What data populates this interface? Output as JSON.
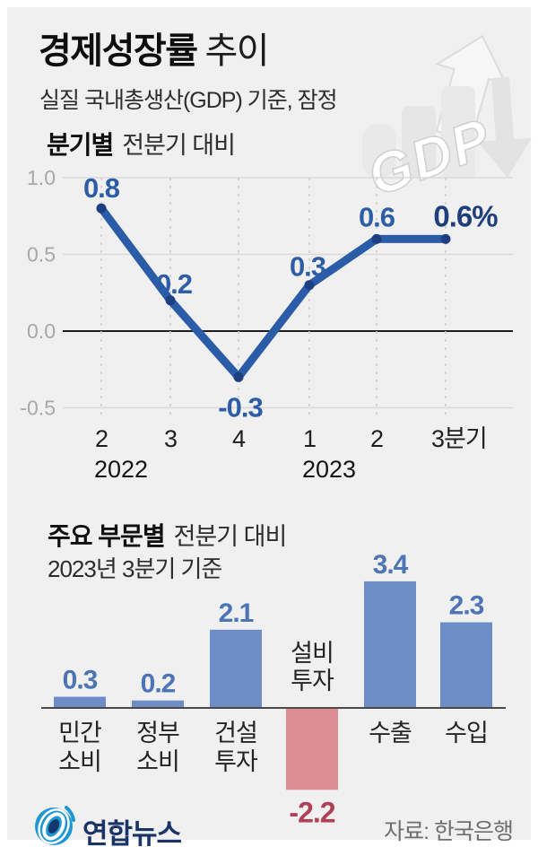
{
  "header": {
    "title_bold": "경제성장률",
    "title_light": "추이",
    "subtitle": "실질 국내총생산(GDP) 기준, 잠정"
  },
  "art": {
    "label": "GDP"
  },
  "colors": {
    "line": "#2b5ca8",
    "dot": "#1e3f7f",
    "label_blue": "#2d5da6",
    "label_final": "#1f3e7c",
    "bar_blue": "#6c8dc6",
    "bar_red": "#dd8d94",
    "bar_label_blue": "#4d74b5",
    "bar_label_red": "#b04055",
    "axis_gray": "#a8a8a8",
    "grid_gray": "#d9d9d9",
    "zero_line": "#1c1c1c",
    "logo_blue": "#1e96d2",
    "logo_navy": "#15356e",
    "panel_bg": "#f0f0f1"
  },
  "chart_data": [
    {
      "type": "line",
      "title_bold": "분기별",
      "title_light": "전분기 대비",
      "x_tick_labels": [
        "2",
        "3",
        "4",
        "1",
        "2",
        "3분기"
      ],
      "year_labels": [
        {
          "label": "2022",
          "index": 0
        },
        {
          "label": "2023",
          "index": 3
        }
      ],
      "values": [
        0.8,
        0.2,
        -0.3,
        0.3,
        0.6,
        0.6
      ],
      "point_labels": [
        "0.8",
        "0.2",
        "-0.3",
        "0.3",
        "0.6",
        "0.6%"
      ],
      "y_ticks": [
        1.0,
        0.5,
        0.0,
        -0.5
      ],
      "ylim": [
        -0.5,
        1.0
      ],
      "grid": "horizontal solid, vertical dashed",
      "legend": "none",
      "unit": "%"
    },
    {
      "type": "bar",
      "title_bold": "주요 부문별",
      "title_light": "전분기 대비",
      "subtitle": "2023년 3분기 기준",
      "categories": [
        "민간소비",
        "정부소비",
        "건설투자",
        "설비투자",
        "수출",
        "수입"
      ],
      "categories_lines": [
        [
          "민간",
          "소비"
        ],
        [
          "정부",
          "소비"
        ],
        [
          "건설",
          "투자"
        ],
        [
          "설비",
          "투자"
        ],
        [
          "수출"
        ],
        [
          "수입"
        ]
      ],
      "values": [
        0.3,
        0.2,
        2.1,
        -2.2,
        3.4,
        2.3
      ],
      "value_labels": [
        "0.3",
        "0.2",
        "2.1",
        "-2.2",
        "3.4",
        "2.3"
      ],
      "ylim": [
        -2.6,
        3.8
      ],
      "legend": "none",
      "unit": "%"
    }
  ],
  "footer": {
    "logo_text": "연합뉴스",
    "source": "자료: 한국은행"
  }
}
